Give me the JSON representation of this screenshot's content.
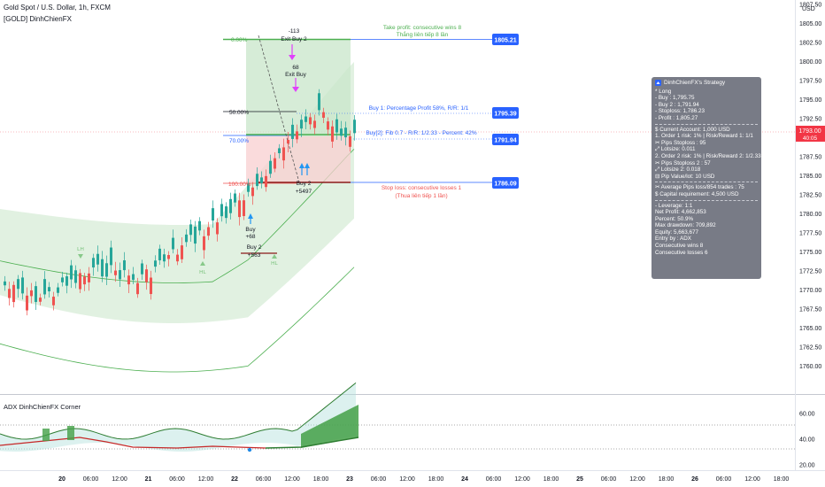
{
  "header": {
    "symbol_line": "Gold Spot / U.S. Dollar, 1h, FXCM",
    "indicator_line": "[GOLD] DinhChienFX"
  },
  "price_axis": {
    "currency": "USD",
    "ticks": [
      "1807.50",
      "1805.00",
      "1802.50",
      "1800.00",
      "1797.50",
      "1795.00",
      "1792.50",
      "1790.00",
      "1787.50",
      "1785.00",
      "1782.50",
      "1780.00",
      "1777.50",
      "1775.00",
      "1772.50",
      "1770.00",
      "1767.50",
      "1765.00",
      "1762.50",
      "1760.00"
    ],
    "current_price": "1793.00",
    "countdown": "40:05"
  },
  "time_axis": {
    "ticks": [
      "20",
      "06:00",
      "12:00",
      "21",
      "06:00",
      "12:00",
      "22",
      "06:00",
      "12:00",
      "18:00",
      "23",
      "06:00",
      "12:00",
      "18:00",
      "24",
      "06:00",
      "12:00",
      "18:00",
      "25",
      "06:00",
      "12:00",
      "18:00",
      "26",
      "06:00",
      "12:00",
      "18:00"
    ]
  },
  "fib_labels": {
    "l0": "0.00%",
    "l50": "50.00%",
    "l70": "70.00%",
    "l100": "100.00%"
  },
  "trade_annotations": {
    "take_profit_1": "Take profit: consecutive wins 8",
    "take_profit_2": "Thắng liên tiếp 8 lần",
    "buy1": "Buy 1: Percentage Profit 58%, R/R: 1/1",
    "buy2": "Buy[2]: Fib 0.7 - R/R: 1/2.33 - Percent: 42%",
    "stop_loss_1": "Stop loss: consecutive losses 1",
    "stop_loss_2": "(Thua liên tiếp 1 lần)",
    "exit_buy2_value": "-113",
    "exit_buy2_label": "Exit Buy 2",
    "exit_buy_value": "68",
    "exit_buy_label": "Exit Buy",
    "buy2_entry_label": "Buy 2",
    "buy2_entry_value": "+5497",
    "buy_left_label": "Buy",
    "buy_left_value": "+68",
    "buy2_left_label": "Buy 2",
    "buy2_left_value": "+563",
    "lh_label": "LH",
    "hl_label": "HL",
    "hl2_label": "HL"
  },
  "price_tags": {
    "tp": "1805.21",
    "buy1": "1795.39",
    "buy2": "1791.94",
    "sl": "1786.09"
  },
  "tooltip": {
    "title": "DinhChienFX's Strategy",
    "lines": [
      "* Long",
      "- Buy : 1,795.75",
      "- Buy 2 : 1,791.94",
      "- Stoploss: 1,786.23",
      "- Profit : 1,805.27",
      "---",
      "$ Current Account: 1,000 USD",
      "1. Order 1 risk: 1% | Risk/Reward 1: 1/1",
      "    ✂ Pips Stoploss : 95",
      "    ⤢ Lotsize: 0.011",
      "2. Order 2 risk: 1% | Risk/Reward 2: 1/2.33",
      "    ✂ Pips Stoploss 2 : 57",
      "    ⤢ Lotsize 2: 0.018",
      "⊟ Pip Value/lot: 10 USD",
      "---",
      "✂ Average Pips loss/854 trades : 75",
      "$ Capital requirement: 4,500 USD",
      "---",
      "- Leverage: 1:1",
      "Net Profit: 4,662,853",
      "Percent: 50.9%",
      "Max drawdown: 709,892",
      "Equity: 5,663,677",
      "Entry by : ADX",
      "Consecutive wins 8",
      "Consecutive losses 6"
    ]
  },
  "adx_panel": {
    "title": "ADX DinhChienFX Corner",
    "ticks": [
      "60.00",
      "40.00",
      "20.00"
    ]
  },
  "colors": {
    "up": "#26a69a",
    "down": "#ef5350",
    "tp_zone": "#c8e6c9",
    "sl_zone": "#f8cfd0",
    "band": "#4caf50",
    "tag_blue": "#2962ff",
    "price_red": "#f23645"
  }
}
